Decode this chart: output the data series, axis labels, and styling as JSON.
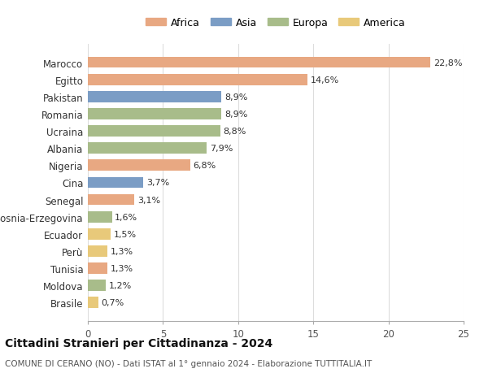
{
  "countries": [
    "Marocco",
    "Egitto",
    "Pakistan",
    "Romania",
    "Ucraina",
    "Albania",
    "Nigeria",
    "Cina",
    "Senegal",
    "Bosnia-Erzegovina",
    "Ecuador",
    "Perù",
    "Tunisia",
    "Moldova",
    "Brasile"
  ],
  "values": [
    22.8,
    14.6,
    8.9,
    8.9,
    8.8,
    7.9,
    6.8,
    3.7,
    3.1,
    1.6,
    1.5,
    1.3,
    1.3,
    1.2,
    0.7
  ],
  "labels": [
    "22,8%",
    "14,6%",
    "8,9%",
    "8,9%",
    "8,8%",
    "7,9%",
    "6,8%",
    "3,7%",
    "3,1%",
    "1,6%",
    "1,5%",
    "1,3%",
    "1,3%",
    "1,2%",
    "0,7%"
  ],
  "continents": [
    "Africa",
    "Africa",
    "Asia",
    "Europa",
    "Europa",
    "Europa",
    "Africa",
    "Asia",
    "Africa",
    "Europa",
    "America",
    "America",
    "Africa",
    "Europa",
    "America"
  ],
  "colors": {
    "Africa": "#E8A882",
    "Asia": "#7B9DC5",
    "Europa": "#A8BC8A",
    "America": "#E8C97A"
  },
  "legend_order": [
    "Africa",
    "Asia",
    "Europa",
    "America"
  ],
  "legend_colors": [
    "#E8A882",
    "#7B9DC5",
    "#A8BC8A",
    "#E8C97A"
  ],
  "xlim": [
    0,
    25
  ],
  "xticks": [
    0,
    5,
    10,
    15,
    20,
    25
  ],
  "title": "Cittadini Stranieri per Cittadinanza - 2024",
  "subtitle": "COMUNE DI CERANO (NO) - Dati ISTAT al 1° gennaio 2024 - Elaborazione TUTTITALIA.IT",
  "background_color": "#ffffff",
  "grid_color": "#dddddd",
  "bar_height": 0.65
}
